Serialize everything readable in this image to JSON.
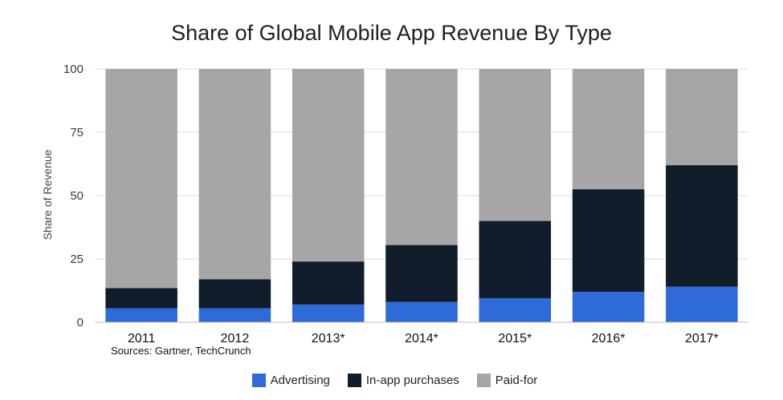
{
  "chart_data": {
    "type": "bar",
    "stacked": true,
    "title": "Share of Global Mobile App Revenue By Type",
    "xlabel": "",
    "ylabel": "Share of Revenue",
    "ylim": [
      0,
      100
    ],
    "yticks": [
      0,
      25,
      50,
      75,
      100
    ],
    "categories": [
      "2011",
      "2012",
      "2013*",
      "2014*",
      "2015*",
      "2016*",
      "2017*"
    ],
    "series": [
      {
        "name": "Advertising",
        "color": "#2f6ad9",
        "values": [
          5.5,
          5.5,
          7,
          8,
          9.5,
          12,
          14
        ]
      },
      {
        "name": "In-app purchases",
        "color": "#111d2b",
        "values": [
          8,
          11.5,
          17,
          22.5,
          30.5,
          40.5,
          48
        ]
      },
      {
        "name": "Paid-for",
        "color": "#a6a6a6",
        "values": [
          86.5,
          83,
          76,
          69.5,
          60,
          47.5,
          38
        ]
      }
    ],
    "source": "Sources: Gartner, TechCrunch",
    "legend_position": "bottom"
  }
}
